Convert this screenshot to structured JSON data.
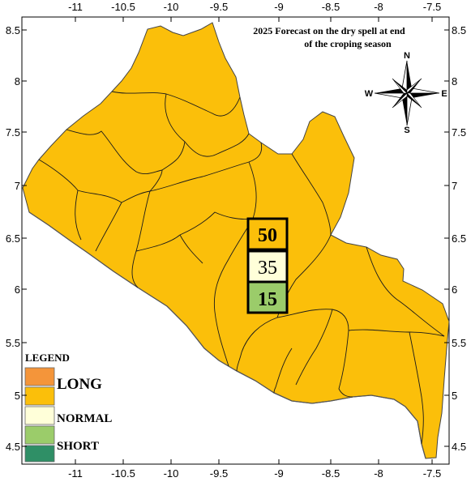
{
  "title_lines": [
    "2025 Forecast on the dry spell at end",
    "of the croping season"
  ],
  "axes": {
    "x_ticks": [
      "-11",
      "-10.5",
      "-10",
      "-9.5",
      "-9",
      "-8.5",
      "-8",
      "-7.5"
    ],
    "y_ticks": [
      "8.5",
      "8",
      "7.5",
      "7",
      "6.5",
      "6",
      "5.5",
      "5",
      "4.5"
    ]
  },
  "compass": {
    "n": "N",
    "s": "S",
    "e": "E",
    "w": "W"
  },
  "legend": {
    "heading": "LEGEND",
    "items": [
      {
        "label": "",
        "color": "#f4953a"
      },
      {
        "label": "LONG",
        "color": "#fbbf0a"
      },
      {
        "label": "NORMAL",
        "color": "#ffffd9"
      },
      {
        "label": "SHORT",
        "color": "#9bcc6a"
      },
      {
        "label": "",
        "color": "#2f8f66"
      }
    ]
  },
  "forecast": [
    {
      "value": "50",
      "color": "#fbbf0a"
    },
    {
      "value": "35",
      "color": "#ffffd9"
    },
    {
      "value": "15",
      "color": "#9bcc6a"
    }
  ],
  "colors": {
    "land": "#fbbf0a",
    "border": "#000000"
  }
}
